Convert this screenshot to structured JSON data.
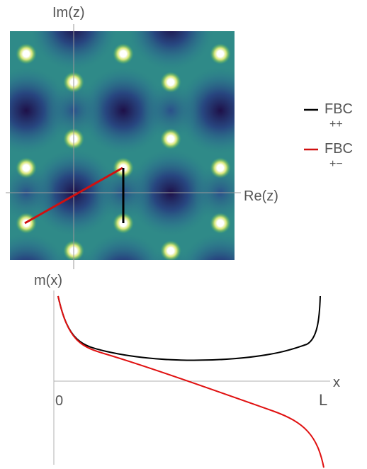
{
  "top_plot": {
    "y_axis_label": "Im(z)",
    "x_axis_label": "Re(z)",
    "colormap": [
      "#2c1050",
      "#2a4a8a",
      "#2d7f8a",
      "#3aab7a",
      "#9fd84a",
      "#f3f57a",
      "#ffffff"
    ]
  },
  "legend": {
    "items": [
      {
        "label_line1": "FBC",
        "label_line2": "++",
        "color": "#000000"
      },
      {
        "label_line1": "FBC",
        "label_line2": "+−",
        "color": "#d01010"
      }
    ]
  },
  "bottom_plot": {
    "y_axis_label": "m(x)",
    "x_axis_label": "x",
    "x_tick_start": "0",
    "x_tick_end": "L",
    "curves": [
      {
        "color": "#000000"
      },
      {
        "color": "#e01010"
      }
    ]
  }
}
